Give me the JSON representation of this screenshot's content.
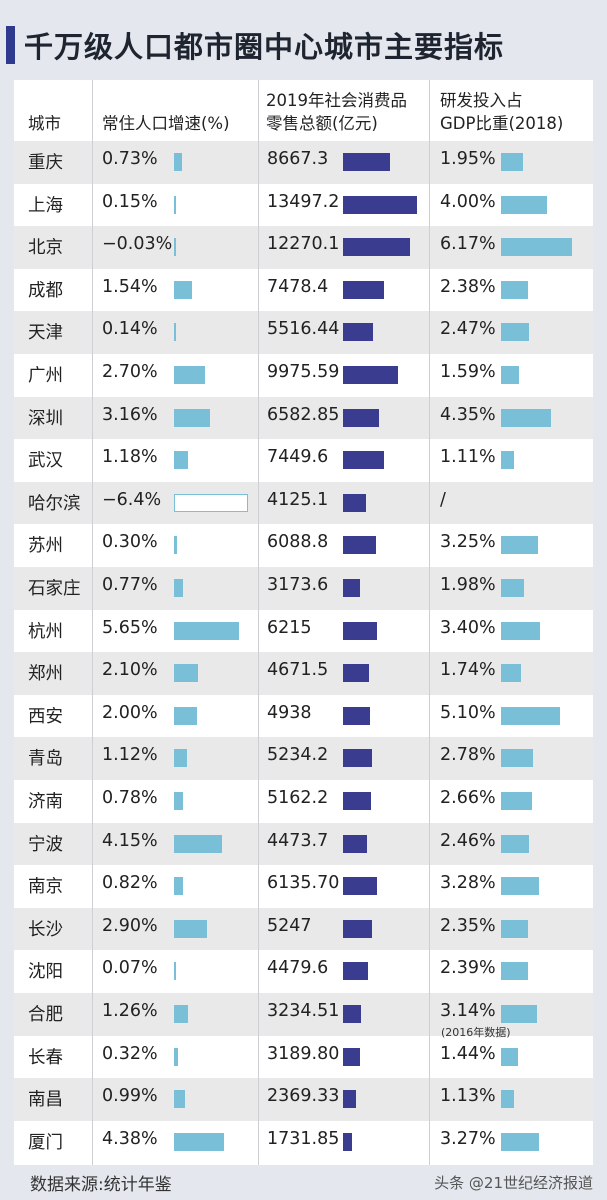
{
  "title": "千万级人口都市圈中心城市主要指标",
  "headers": {
    "city": "城市",
    "pop": "常住人口增速(%)",
    "retail": [
      "2019年社会消费品",
      "零售总额(亿元)"
    ],
    "rd": [
      "研发投入占",
      "GDP比重(2018)"
    ]
  },
  "chart_data": {
    "type": "table",
    "columns": [
      "城市",
      "常住人口增速(%)",
      "2019年社会消费品零售总额(亿元)",
      "研发投入占GDP比重(2018)"
    ],
    "rows": [
      {
        "city": "重庆",
        "pop": "0.73%",
        "pop_v": 0.73,
        "retail": "8667.3",
        "retail_v": 8667.3,
        "rd": "1.95%",
        "rd_v": 1.95
      },
      {
        "city": "上海",
        "pop": "0.15%",
        "pop_v": 0.15,
        "retail": "13497.2",
        "retail_v": 13497.2,
        "rd": "4.00%",
        "rd_v": 4.0
      },
      {
        "city": "北京",
        "pop": "−0.03%",
        "pop_v": -0.03,
        "retail": "12270.1",
        "retail_v": 12270.1,
        "rd": "6.17%",
        "rd_v": 6.17
      },
      {
        "city": "成都",
        "pop": "1.54%",
        "pop_v": 1.54,
        "retail": "7478.4",
        "retail_v": 7478.4,
        "rd": "2.38%",
        "rd_v": 2.38
      },
      {
        "city": "天津",
        "pop": "0.14%",
        "pop_v": 0.14,
        "retail": "5516.44",
        "retail_v": 5516.44,
        "rd": "2.47%",
        "rd_v": 2.47
      },
      {
        "city": "广州",
        "pop": "2.70%",
        "pop_v": 2.7,
        "retail": "9975.59",
        "retail_v": 9975.59,
        "rd": "1.59%",
        "rd_v": 1.59
      },
      {
        "city": "深圳",
        "pop": "3.16%",
        "pop_v": 3.16,
        "retail": "6582.85",
        "retail_v": 6582.85,
        "rd": "4.35%",
        "rd_v": 4.35
      },
      {
        "city": "武汉",
        "pop": "1.18%",
        "pop_v": 1.18,
        "retail": "7449.6",
        "retail_v": 7449.6,
        "rd": "1.11%",
        "rd_v": 1.11
      },
      {
        "city": "哈尔滨",
        "pop": "−6.4%",
        "pop_v": -6.4,
        "retail": "4125.1",
        "retail_v": 4125.1,
        "rd": "/",
        "rd_v": null
      },
      {
        "city": "苏州",
        "pop": "0.30%",
        "pop_v": 0.3,
        "retail": "6088.8",
        "retail_v": 6088.8,
        "rd": "3.25%",
        "rd_v": 3.25
      },
      {
        "city": "石家庄",
        "pop": "0.77%",
        "pop_v": 0.77,
        "retail": "3173.6",
        "retail_v": 3173.6,
        "rd": "1.98%",
        "rd_v": 1.98
      },
      {
        "city": "杭州",
        "pop": "5.65%",
        "pop_v": 5.65,
        "retail": "6215",
        "retail_v": 6215,
        "rd": "3.40%",
        "rd_v": 3.4
      },
      {
        "city": "郑州",
        "pop": "2.10%",
        "pop_v": 2.1,
        "retail": "4671.5",
        "retail_v": 4671.5,
        "rd": "1.74%",
        "rd_v": 1.74
      },
      {
        "city": "西安",
        "pop": "2.00%",
        "pop_v": 2.0,
        "retail": "4938",
        "retail_v": 4938,
        "rd": "5.10%",
        "rd_v": 5.1
      },
      {
        "city": "青岛",
        "pop": "1.12%",
        "pop_v": 1.12,
        "retail": "5234.2",
        "retail_v": 5234.2,
        "rd": "2.78%",
        "rd_v": 2.78
      },
      {
        "city": "济南",
        "pop": "0.78%",
        "pop_v": 0.78,
        "retail": "5162.2",
        "retail_v": 5162.2,
        "rd": "2.66%",
        "rd_v": 2.66
      },
      {
        "city": "宁波",
        "pop": "4.15%",
        "pop_v": 4.15,
        "retail": "4473.7",
        "retail_v": 4473.7,
        "rd": "2.46%",
        "rd_v": 2.46
      },
      {
        "city": "南京",
        "pop": "0.82%",
        "pop_v": 0.82,
        "retail": "6135.70",
        "retail_v": 6135.7,
        "rd": "3.28%",
        "rd_v": 3.28
      },
      {
        "city": "长沙",
        "pop": "2.90%",
        "pop_v": 2.9,
        "retail": "5247",
        "retail_v": 5247,
        "rd": "2.35%",
        "rd_v": 2.35
      },
      {
        "city": "沈阳",
        "pop": "0.07%",
        "pop_v": 0.07,
        "retail": "4479.6",
        "retail_v": 4479.6,
        "rd": "2.39%",
        "rd_v": 2.39
      },
      {
        "city": "合肥",
        "pop": "1.26%",
        "pop_v": 1.26,
        "retail": "3234.51",
        "retail_v": 3234.51,
        "rd": "3.14%",
        "rd_v": 3.14
      },
      {
        "city": "长春",
        "pop": "0.32%",
        "pop_v": 0.32,
        "retail": "3189.80",
        "retail_v": 3189.8,
        "rd": "1.44%",
        "rd_v": 1.44
      },
      {
        "city": "南昌",
        "pop": "0.99%",
        "pop_v": 0.99,
        "retail": "2369.33",
        "retail_v": 2369.33,
        "rd": "1.13%",
        "rd_v": 1.13
      },
      {
        "city": "厦门",
        "pop": "4.38%",
        "pop_v": 4.38,
        "retail": "1731.85",
        "retail_v": 1731.85,
        "rd": "3.27%",
        "rd_v": 3.27
      }
    ]
  },
  "note": "(2016年数据)",
  "source": "数据来源:统计年鉴",
  "credit": "头条 @21世纪经济报道",
  "colors": {
    "pop_bar": "#79bfd8",
    "retail_bar": "#3a3d8f",
    "rd_bar": "#79bfd8",
    "title_accent": "#2f3a8f"
  }
}
